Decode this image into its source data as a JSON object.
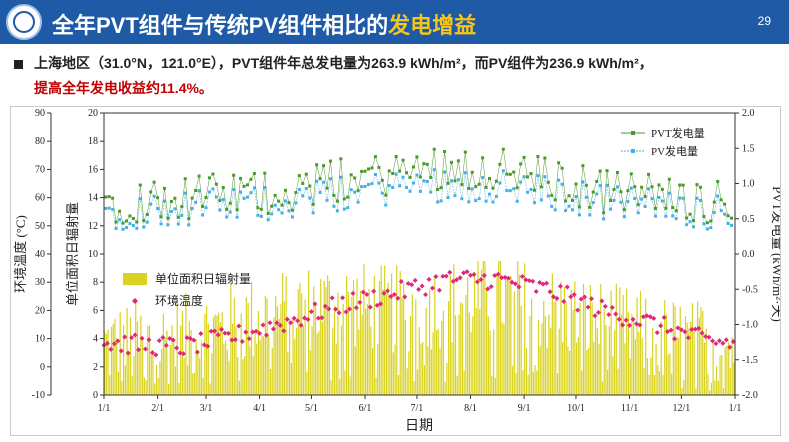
{
  "header": {
    "title_main": "全年PVT组件与传统PV组件相比的",
    "title_highlight": "发电增益",
    "page_number": "29",
    "colors": {
      "bar": "#1f5aa6",
      "highlight": "#f5c518"
    }
  },
  "content": {
    "bullet_text": "上海地区（31.0°N，121.0°E），PVT组件年总发电量为263.9 kWh/m²，而PV组件为236.9 kWh/m²，",
    "bullet_highlight": "提高全年发电收益约11.4%。",
    "highlight_color": "#c00000"
  },
  "chart_data": {
    "type": "line",
    "xlabel": "日期",
    "x_ticks": [
      "1/1",
      "2/1",
      "3/1",
      "4/1",
      "5/1",
      "6/1",
      "7/1",
      "8/1",
      "9/1",
      "10/1",
      "11/1",
      "12/1",
      "1/1"
    ],
    "axes": {
      "temp": {
        "label": "环境温度 (°C)",
        "ylim": [
          -10,
          90
        ],
        "ticks": [
          -10,
          0,
          10,
          20,
          30,
          40,
          50,
          60,
          70,
          80,
          90
        ]
      },
      "radiation": {
        "label": "单位面积日辐射量",
        "ylim": [
          0,
          20
        ],
        "ticks": [
          0,
          2,
          4,
          6,
          8,
          10,
          12,
          14,
          16,
          18,
          20
        ]
      },
      "power": {
        "label": "PVT发电量 (kWh/m²·天)",
        "ylim": [
          -2.0,
          2.0
        ],
        "ticks": [
          -2.0,
          -1.5,
          -1.0,
          -0.5,
          0.0,
          0.5,
          1.0,
          1.5,
          2.0
        ]
      }
    },
    "legend_top_right": [
      "PVT发电量",
      "PV发电量"
    ],
    "legend_mid_left": [
      "单位面积日辐射量",
      "环境温度"
    ],
    "series": [
      {
        "name": "PVT发电量",
        "axis": "power",
        "color": "#4a9a2a",
        "monthly_mean": [
          0.75,
          0.8,
          0.85,
          0.9,
          1.05,
          1.15,
          1.25,
          1.2,
          1.05,
          0.9,
          0.85,
          0.75
        ]
      },
      {
        "name": "PV发电量",
        "axis": "power",
        "color": "#45b0e6",
        "monthly_mean": [
          0.6,
          0.65,
          0.7,
          0.75,
          0.85,
          0.95,
          1.0,
          0.95,
          0.85,
          0.75,
          0.7,
          0.6
        ]
      },
      {
        "name": "单位面积日辐射量",
        "axis": "radiation",
        "color": "#d9d21e",
        "monthly_mean": [
          3.5,
          4.0,
          5.0,
          6.0,
          6.5,
          6.0,
          6.5,
          7.0,
          6.0,
          5.0,
          4.0,
          3.5
        ]
      },
      {
        "name": "环境温度",
        "axis": "temp",
        "color": "#e0267f",
        "monthly_mean": [
          8,
          7,
          11,
          16,
          22,
          26,
          31,
          31,
          27,
          20,
          15,
          9
        ]
      }
    ]
  }
}
